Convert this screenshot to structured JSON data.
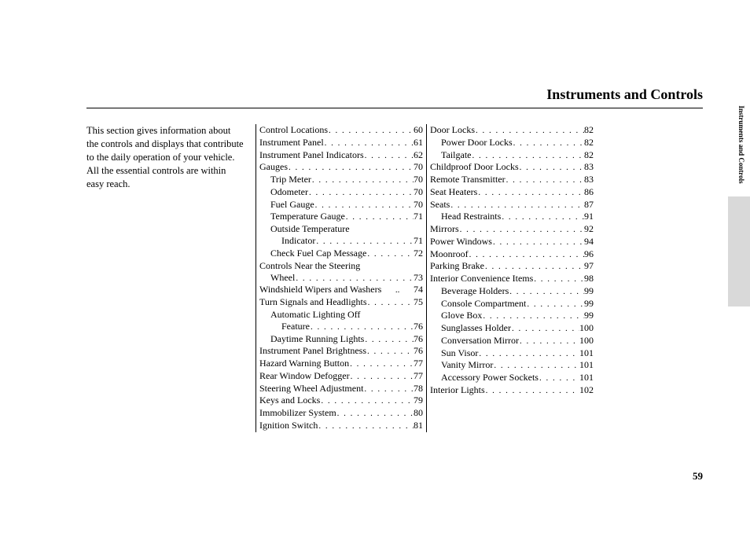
{
  "title": "Instruments and Controls",
  "intro": "This section gives information about the controls and displays that contribute to the daily operation of your vehicle. All the essential controls are within easy reach.",
  "side_tab": "Instruments and Controls",
  "page_number": "59",
  "col1": [
    {
      "label": "Control Locations",
      "page": "60",
      "indent": 0
    },
    {
      "label": "Instrument Panel",
      "page": "61",
      "indent": 0
    },
    {
      "label": "Instrument Panel Indicators",
      "page": "62",
      "indent": 0
    },
    {
      "label": "Gauges",
      "page": "70",
      "indent": 0
    },
    {
      "label": "Trip Meter",
      "page": "70",
      "indent": 1
    },
    {
      "label": "Odometer",
      "page": "70",
      "indent": 1
    },
    {
      "label": "Fuel Gauge",
      "page": "70",
      "indent": 1
    },
    {
      "label": "Temperature Gauge",
      "page": "71",
      "indent": 1
    },
    {
      "label": "Outside Temperature",
      "page": "",
      "indent": 1,
      "nodots": true
    },
    {
      "label": "Indicator",
      "page": "71",
      "indent": 2
    },
    {
      "label": "Check Fuel Cap Message",
      "page": "72",
      "indent": 1
    },
    {
      "label": "Controls Near the Steering",
      "page": "",
      "indent": 0,
      "nodots": true
    },
    {
      "label": "Wheel",
      "page": "73",
      "indent": 1
    },
    {
      "label": "Windshield Wipers and Washers",
      "page": "74",
      "indent": 0,
      "tight": true
    },
    {
      "label": "Turn Signals and Headlights",
      "page": "75",
      "indent": 0
    },
    {
      "label": "Automatic Lighting Off",
      "page": "",
      "indent": 1,
      "nodots": true
    },
    {
      "label": "Feature",
      "page": "76",
      "indent": 2
    },
    {
      "label": "Daytime Running Lights",
      "page": "76",
      "indent": 1
    },
    {
      "label": "Instrument Panel Brightness",
      "page": "76",
      "indent": 0
    },
    {
      "label": "Hazard Warning Button",
      "page": "77",
      "indent": 0
    },
    {
      "label": "Rear Window Defogger",
      "page": "77",
      "indent": 0
    },
    {
      "label": "Steering Wheel Adjustment",
      "page": "78",
      "indent": 0
    },
    {
      "label": "Keys and Locks",
      "page": "79",
      "indent": 0
    },
    {
      "label": "Immobilizer System",
      "page": "80",
      "indent": 0
    },
    {
      "label": "Ignition Switch",
      "page": "81",
      "indent": 0
    }
  ],
  "col2": [
    {
      "label": "Door Locks",
      "page": "82",
      "indent": 0
    },
    {
      "label": "Power Door Locks",
      "page": "82",
      "indent": 1
    },
    {
      "label": "Tailgate",
      "page": "82",
      "indent": 1
    },
    {
      "label": "Childproof Door Locks",
      "page": "83",
      "indent": 0
    },
    {
      "label": "Remote Transmitter",
      "page": "83",
      "indent": 0
    },
    {
      "label": "Seat Heaters",
      "page": "86",
      "indent": 0
    },
    {
      "label": "Seats",
      "page": "87",
      "indent": 0
    },
    {
      "label": "Head Restraints",
      "page": "91",
      "indent": 1
    },
    {
      "label": "Mirrors",
      "page": "92",
      "indent": 0
    },
    {
      "label": "Power Windows",
      "page": "94",
      "indent": 0
    },
    {
      "label": "Moonroof",
      "page": "96",
      "indent": 0
    },
    {
      "label": "Parking Brake",
      "page": "97",
      "indent": 0
    },
    {
      "label": "Interior Convenience Items",
      "page": "98",
      "indent": 0
    },
    {
      "label": "Beverage Holders",
      "page": "99",
      "indent": 1
    },
    {
      "label": "Console Compartment",
      "page": "99",
      "indent": 1
    },
    {
      "label": "Glove Box",
      "page": "99",
      "indent": 1
    },
    {
      "label": "Sunglasses Holder",
      "page": "100",
      "indent": 1
    },
    {
      "label": "Conversation Mirror",
      "page": "100",
      "indent": 1
    },
    {
      "label": "Sun Visor",
      "page": "101",
      "indent": 1
    },
    {
      "label": "Vanity Mirror",
      "page": "101",
      "indent": 1
    },
    {
      "label": "Accessory Power Sockets",
      "page": "101",
      "indent": 1
    },
    {
      "label": "Interior Lights",
      "page": "102",
      "indent": 0
    }
  ]
}
